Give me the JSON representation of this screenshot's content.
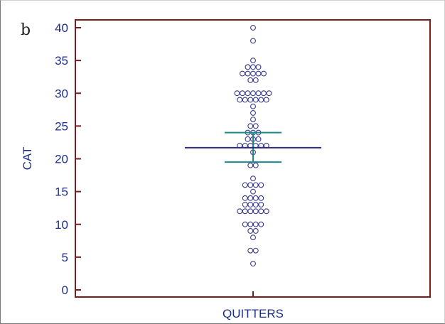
{
  "panel_label": "b",
  "chart_data": {
    "type": "scatter",
    "subtype": "dot-plot",
    "ylabel": "CAT",
    "categories": [
      "QUITTERS"
    ],
    "ylim": [
      0,
      40
    ],
    "yticks": [
      0,
      5,
      10,
      15,
      20,
      25,
      30,
      35,
      40
    ],
    "grid": false,
    "series": [
      {
        "category": "QUITTERS",
        "values": [
          40,
          38,
          35,
          34,
          34,
          34,
          33,
          33,
          33,
          33,
          33,
          32,
          32,
          30,
          30,
          30,
          30,
          30,
          30,
          30,
          29,
          29,
          29,
          29,
          29,
          29,
          28,
          27,
          26,
          25,
          25,
          24,
          24,
          24,
          23,
          23,
          23,
          22,
          22,
          22,
          22,
          22,
          22,
          21,
          19,
          19,
          17,
          16,
          16,
          16,
          16,
          15,
          14,
          14,
          14,
          14,
          13,
          13,
          13,
          13,
          12,
          12,
          12,
          12,
          12,
          12,
          10,
          10,
          10,
          10,
          9,
          9,
          8,
          6,
          6,
          4
        ]
      }
    ],
    "mean": 21.7,
    "ci": [
      19.5,
      24.0
    ],
    "colors": {
      "axis_frame": "#7a1c1c",
      "points": "#3a3a8c",
      "mean_line": "#2b2b8a",
      "ci_bars": "#1a8a8a",
      "text": "#1f2f8a"
    }
  }
}
